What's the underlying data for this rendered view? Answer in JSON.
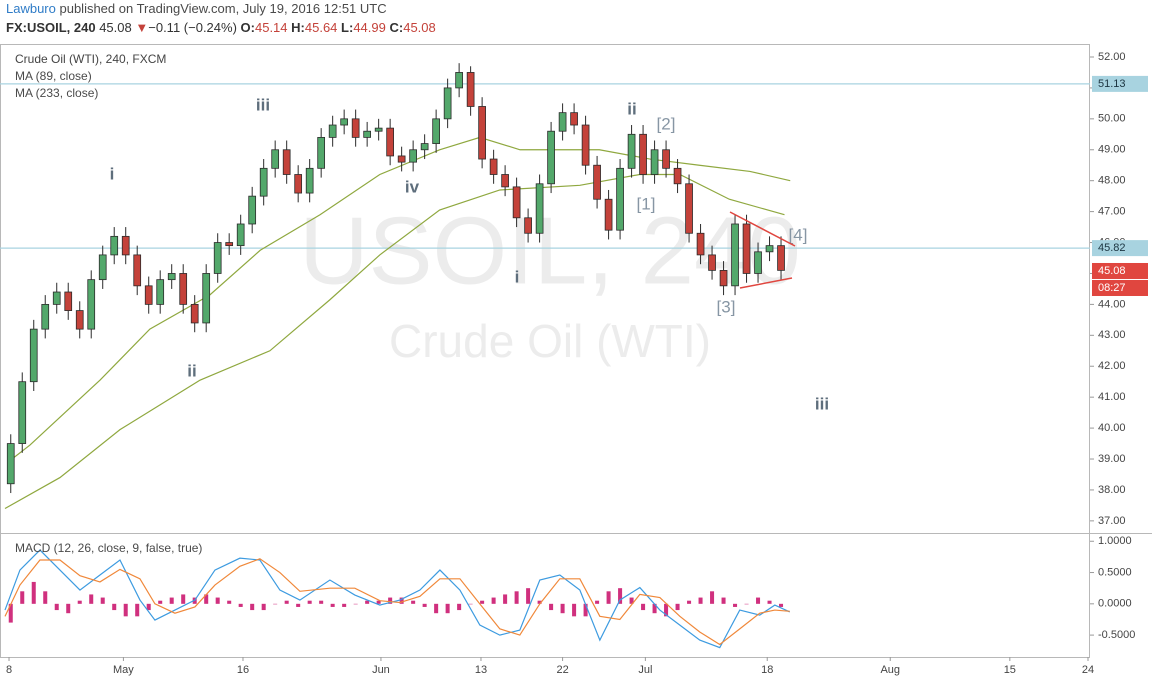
{
  "header": {
    "author": "Lawburo",
    "published": " published on TradingView.com, July 19, 2016 12:51 UTC"
  },
  "quote": {
    "symbol": "FX:USOIL, 240",
    "last": "45.08",
    "arrow": "▼",
    "change": "−0.11 (−0.24%)",
    "o_label": "O:",
    "open": "45.14",
    "h_label": "H:",
    "high": "45.64",
    "l_label": "L:",
    "low": "44.99",
    "c_label": "C:",
    "close": "45.08"
  },
  "watermark": {
    "symbol": "USOIL, 240",
    "name": "Crude Oil (WTI)"
  },
  "chart_data": [
    {
      "type": "candlestick",
      "title": "Crude Oil (WTI), 240, FXCM",
      "up_color": "#53a86b",
      "down_color": "#c4423a",
      "wick_color": "#2b2b2b",
      "x": [
        0.5,
        1.5,
        2.5,
        3.5,
        4.5,
        5.5,
        6.5,
        7.5,
        8.5,
        9.5,
        10.5,
        11.5,
        12.5,
        13.5,
        14.5,
        15.5,
        16.5,
        17.5,
        18.5,
        19.5,
        20.5,
        21.5,
        22.5,
        23.5,
        24.5,
        25.5,
        26.5,
        27.5,
        28.5,
        29.5,
        30.5,
        31.5,
        32.5,
        33.5,
        34.5,
        35.5,
        36.5,
        37.5,
        38.5,
        39.5,
        40.5,
        41.5,
        42.5,
        43.5,
        44.5,
        45.5,
        46.5,
        47.5,
        48.5,
        49.5,
        50.5,
        51.5,
        52.5,
        53.5,
        54.5,
        55.5,
        56.5,
        57.5,
        58.5,
        59.5,
        60.5,
        61.5,
        62.5,
        63.5,
        64.5,
        65.5,
        66.5,
        67.5
      ],
      "open": [
        38.2,
        39.5,
        41.5,
        43.2,
        44.0,
        44.4,
        43.8,
        43.2,
        44.8,
        45.6,
        46.2,
        45.6,
        44.6,
        44.0,
        44.8,
        45.0,
        44.0,
        43.4,
        45.0,
        46.0,
        45.9,
        46.6,
        47.5,
        48.4,
        49.0,
        48.2,
        47.6,
        48.4,
        49.4,
        49.8,
        50.0,
        49.4,
        49.6,
        49.7,
        48.8,
        48.6,
        49.0,
        49.2,
        50.0,
        51.0,
        51.5,
        50.4,
        48.7,
        48.2,
        47.8,
        46.8,
        46.3,
        47.9,
        49.6,
        50.2,
        49.8,
        48.5,
        47.4,
        46.4,
        48.4,
        49.5,
        48.2,
        49.0,
        48.4,
        47.9,
        46.3,
        45.6,
        45.1,
        44.6,
        46.6,
        45.0,
        45.7,
        45.9
      ],
      "high": [
        39.8,
        41.8,
        43.5,
        44.3,
        44.7,
        44.7,
        44.1,
        45.1,
        45.9,
        46.5,
        46.5,
        45.9,
        44.9,
        45.1,
        45.3,
        45.3,
        44.3,
        45.3,
        46.3,
        46.3,
        46.9,
        47.8,
        48.7,
        49.3,
        49.3,
        48.5,
        48.7,
        49.7,
        50.1,
        50.3,
        50.3,
        49.9,
        50.0,
        50.0,
        49.1,
        49.3,
        49.5,
        50.3,
        51.3,
        51.8,
        51.7,
        50.7,
        49.0,
        48.5,
        48.1,
        47.1,
        48.2,
        49.9,
        50.5,
        50.5,
        50.1,
        48.8,
        47.7,
        48.7,
        49.8,
        49.8,
        49.3,
        49.3,
        48.7,
        48.2,
        46.6,
        45.9,
        45.4,
        46.9,
        46.9,
        46.0,
        46.2,
        46.2
      ],
      "low": [
        37.9,
        39.2,
        41.2,
        42.9,
        43.7,
        43.5,
        42.9,
        42.9,
        44.5,
        45.3,
        45.3,
        44.3,
        43.7,
        43.7,
        44.5,
        43.7,
        43.1,
        43.1,
        44.7,
        45.6,
        45.6,
        46.3,
        47.2,
        48.1,
        47.9,
        47.3,
        47.3,
        48.1,
        49.1,
        49.5,
        49.1,
        49.1,
        49.3,
        48.5,
        48.3,
        48.3,
        48.7,
        48.9,
        49.7,
        50.7,
        50.1,
        48.4,
        47.9,
        47.5,
        46.5,
        46.0,
        46.0,
        47.6,
        49.3,
        49.5,
        48.2,
        47.1,
        46.1,
        46.1,
        48.1,
        47.9,
        47.9,
        48.1,
        47.6,
        46.0,
        45.3,
        44.8,
        44.3,
        44.3,
        44.7,
        44.7,
        45.4,
        44.8
      ],
      "close": [
        39.5,
        41.5,
        43.2,
        44.0,
        44.4,
        43.8,
        43.2,
        44.8,
        45.6,
        46.2,
        45.6,
        44.6,
        44.0,
        44.8,
        45.0,
        44.0,
        43.4,
        45.0,
        46.0,
        45.9,
        46.6,
        47.5,
        48.4,
        49.0,
        48.2,
        47.6,
        48.4,
        49.4,
        49.8,
        50.0,
        49.4,
        49.6,
        49.7,
        48.8,
        48.6,
        49.0,
        49.2,
        50.0,
        51.0,
        51.5,
        50.4,
        48.7,
        48.2,
        47.8,
        46.8,
        46.3,
        47.9,
        49.6,
        50.2,
        49.8,
        48.5,
        47.4,
        46.4,
        48.4,
        49.5,
        48.2,
        49.0,
        48.4,
        47.9,
        46.3,
        45.6,
        45.1,
        44.6,
        46.6,
        45.0,
        45.7,
        45.9,
        45.1
      ],
      "series": [
        {
          "name": "MA (89, close)",
          "color": "#8fa83f",
          "x": [
            0.26,
            2.17,
            8.26,
            12.6,
            17.8,
            22.2,
            27.4,
            32.6,
            37.8,
            41.3,
            44.8,
            48.3,
            51.7,
            56.1,
            60.4,
            64.8,
            68.3
          ],
          "values": [
            38.9,
            39.45,
            41.55,
            43.2,
            44.3,
            45.75,
            46.9,
            48.2,
            49.0,
            49.4,
            49.0,
            49.0,
            49.0,
            48.7,
            48.5,
            48.3,
            48.0
          ]
        },
        {
          "name": "MA (233, close)",
          "color": "#8fa83f",
          "x": [
            0,
            4.78,
            10,
            16.96,
            23.04,
            28.26,
            32.6,
            37.8,
            43.04,
            50,
            55.2,
            58.7,
            63,
            67.8
          ],
          "values": [
            37.4,
            38.4,
            39.95,
            41.55,
            42.5,
            44.15,
            45.6,
            47.05,
            47.7,
            47.85,
            48.2,
            48.2,
            47.4,
            46.9
          ]
        }
      ],
      "hlines": [
        51.13,
        45.82
      ],
      "hline_color": "#a8d3e0",
      "last_price": 45.08,
      "countdown": "08:27",
      "price_box_color": "#e0463f",
      "annotations": [
        "i",
        "ii",
        "iii",
        "iv",
        "i",
        "ii",
        "[2]",
        "[1]",
        "[3]",
        "[4]",
        "iii"
      ],
      "xlim": [
        0,
        94.2
      ],
      "ylim": [
        36.64,
        52.42
      ],
      "yticks": [
        {
          "value": 52,
          "label": "52.00"
        },
        {
          "value": 51,
          "label": "51.00"
        },
        {
          "value": 50,
          "label": "50.00"
        },
        {
          "value": 49,
          "label": "49.00"
        },
        {
          "value": 48,
          "label": "48.00"
        },
        {
          "value": 47,
          "label": "47.00"
        },
        {
          "value": 46,
          "label": "46.00"
        },
        {
          "value": 45,
          "label": "45.00"
        },
        {
          "value": 44,
          "label": "44.00"
        },
        {
          "value": 43,
          "label": "43.00"
        },
        {
          "value": 42,
          "label": "42.00"
        },
        {
          "value": 41,
          "label": "41.00"
        },
        {
          "value": 40,
          "label": "40.00"
        },
        {
          "value": 39,
          "label": "39.00"
        },
        {
          "value": 38,
          "label": "38.00"
        },
        {
          "value": 37,
          "label": "37.00"
        }
      ]
    },
    {
      "type": "macd",
      "title": "MACD (12, 26, close, 9, false, true)",
      "xlim": [
        0,
        94.2
      ],
      "ylim": [
        -0.85,
        1.1
      ],
      "yticks": [
        {
          "value": 1,
          "label": "1.0000"
        },
        {
          "value": 0.5,
          "label": "0.5000"
        },
        {
          "value": 0,
          "label": "0.0000"
        },
        {
          "value": -0.5,
          "label": "-0.5000"
        }
      ],
      "xticks": [
        {
          "value": 0.35,
          "label": "8"
        },
        {
          "value": 10.3,
          "label": "May"
        },
        {
          "value": 20.7,
          "label": "16"
        },
        {
          "value": 32.7,
          "label": "Jun"
        },
        {
          "value": 41.4,
          "label": "13"
        },
        {
          "value": 48.5,
          "label": "22"
        },
        {
          "value": 55.7,
          "label": "Jul"
        },
        {
          "value": 66.3,
          "label": "18"
        },
        {
          "value": 77,
          "label": "Aug"
        },
        {
          "value": 87.4,
          "label": "15"
        },
        {
          "value": 94.2,
          "label": "24"
        }
      ],
      "series": [
        {
          "color": "#3d9be0",
          "x": [
            0,
            1.3,
            3.04,
            4.78,
            6.52,
            8.26,
            10,
            11.74,
            13.04,
            14.78,
            16.52,
            18.26,
            20.43,
            22.17,
            23.91,
            25.65,
            28.26,
            30.43,
            32.61,
            34.35,
            36.09,
            37.83,
            39.57,
            41.3,
            43.04,
            44.78,
            46.52,
            48.26,
            50,
            51.74,
            53.48,
            55.22,
            56.96,
            58.7,
            60.43,
            62.17,
            63.91,
            65.65,
            66.96,
            68.26
          ],
          "values": [
            -0.1,
            0.54,
            0.86,
            0.54,
            0.22,
            0.46,
            0.7,
            0.06,
            -0.26,
            -0.1,
            0.06,
            0.54,
            0.73,
            0.7,
            0.22,
            0.06,
            0.38,
            0.14,
            -0.02,
            0.06,
            0.22,
            0.54,
            0.22,
            -0.34,
            -0.5,
            -0.42,
            0.38,
            0.46,
            0.22,
            -0.58,
            0.06,
            0.26,
            -0.1,
            -0.34,
            -0.58,
            -0.7,
            -0.1,
            -0.18,
            -0.02,
            -0.13
          ]
        },
        {
          "color": "#f0883a",
          "x": [
            0,
            1.3,
            3.04,
            4.78,
            6.52,
            8.26,
            10,
            11.74,
            13.04,
            14.78,
            16.52,
            18.26,
            20.43,
            22.17,
            23.91,
            25.65,
            28.26,
            30.43,
            32.61,
            34.35,
            36.09,
            37.83,
            39.57,
            41.3,
            43.04,
            44.78,
            46.52,
            48.26,
            50,
            51.74,
            53.48,
            55.22,
            56.96,
            58.7,
            60.43,
            62.17,
            63.91,
            65.65,
            66.96,
            68.26
          ],
          "values": [
            -0.2,
            0.3,
            0.7,
            0.7,
            0.45,
            0.35,
            0.55,
            0.4,
            0.0,
            -0.15,
            -0.05,
            0.3,
            0.6,
            0.72,
            0.5,
            0.2,
            0.25,
            0.25,
            0.05,
            0.02,
            0.12,
            0.4,
            0.4,
            0.0,
            -0.4,
            -0.5,
            0.0,
            0.4,
            0.4,
            -0.2,
            -0.25,
            0.15,
            0.1,
            -0.2,
            -0.45,
            -0.65,
            -0.4,
            -0.15,
            -0.1,
            -0.12
          ]
        }
      ],
      "histogram": {
        "color": "#d0307e",
        "values": [
          -0.3,
          0.2,
          0.35,
          0.2,
          -0.1,
          -0.15,
          0.05,
          0.15,
          0.1,
          -0.1,
          -0.2,
          -0.2,
          -0.1,
          0.05,
          0.1,
          0.15,
          0.1,
          0.15,
          0.1,
          0.05,
          -0.05,
          -0.1,
          -0.1,
          0.0,
          0.05,
          -0.05,
          0.05,
          0.05,
          -0.05,
          -0.05,
          0.0,
          0.05,
          0.05,
          0.1,
          0.1,
          0.05,
          -0.05,
          -0.15,
          -0.15,
          -0.1,
          0.0,
          0.05,
          0.1,
          0.15,
          0.2,
          0.25,
          0.05,
          -0.1,
          -0.15,
          -0.2,
          -0.2,
          0.05,
          0.2,
          0.25,
          0.1,
          -0.1,
          -0.15,
          -0.2,
          -0.1,
          0.05,
          0.1,
          0.2,
          0.1,
          -0.05,
          0.0,
          0.1,
          0.05,
          -0.05
        ]
      }
    }
  ]
}
